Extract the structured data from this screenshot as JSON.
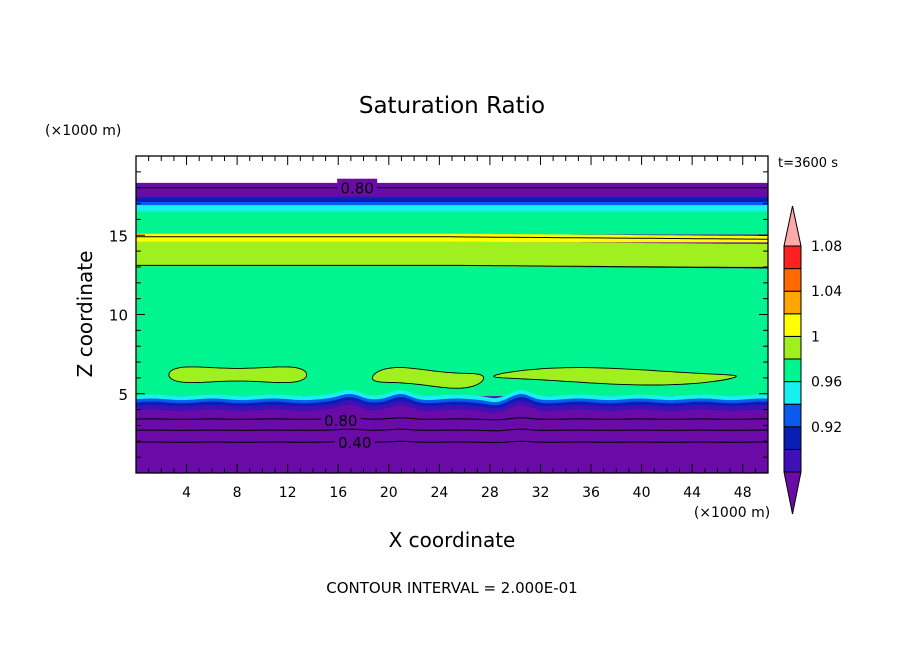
{
  "chart_data": {
    "type": "contour",
    "title": "Saturation Ratio",
    "xlabel": "X coordinate",
    "ylabel": "Z coordinate",
    "x_unit": "(×1000 m)",
    "y_unit": "(×1000 m)",
    "time_label": "t=3600 s",
    "footer": "CONTOUR INTERVAL = 2.000E-01",
    "xlim": [
      0,
      50
    ],
    "ylim": [
      0,
      20
    ],
    "x_ticks": [
      4,
      8,
      12,
      16,
      20,
      24,
      28,
      32,
      36,
      40,
      44,
      48
    ],
    "x_tick_labels": [
      "4",
      "8",
      "12",
      "16",
      "20",
      "24",
      "28",
      "32",
      "36",
      "40",
      "44",
      "48"
    ],
    "y_ticks": [
      5,
      10,
      15
    ],
    "y_tick_labels": [
      "5",
      "10",
      "15"
    ],
    "contour_labels": [
      {
        "text": "0.80",
        "x": 17.5,
        "z": 18.0
      },
      {
        "text": "0.80",
        "x": 16.2,
        "z": 3.35
      },
      {
        "text": "0.40",
        "x": 17.3,
        "z": 1.95
      }
    ],
    "bands": [
      {
        "z0": 0.0,
        "z1": 18.3,
        "color": "#6a0ba8",
        "level": "<0.90"
      },
      {
        "z0": 17.3,
        "z1": 17.45,
        "color": "#3f10b8",
        "level": "0.90-0.92"
      },
      {
        "z0": 17.05,
        "z1": 17.35,
        "color": "#0a1eb4",
        "level": "0.92-0.94"
      },
      {
        "z0": 16.85,
        "z1": 17.1,
        "color": "#0a5af0",
        "level": "0.94-0.96"
      },
      {
        "z0": 16.45,
        "z1": 16.9,
        "color": "#18f0f0",
        "level": "0.96-0.98"
      },
      {
        "z0": 15.05,
        "z1": 16.5,
        "color": "#00f590",
        "level": "0.98-1.00"
      },
      {
        "z0": 14.55,
        "z1": 15.1,
        "color": "#ffff00",
        "level": "1.02-1.04"
      },
      {
        "z0": 13.0,
        "z1": 14.6,
        "color": "#a0f020",
        "level": "1.00-1.02"
      },
      {
        "z0": 4.85,
        "z1": 13.05,
        "color": "#00f590",
        "level": "0.98-1.00"
      },
      {
        "z0": 4.6,
        "z1": 4.9,
        "color": "#18f0f0",
        "level": "0.96-0.98"
      },
      {
        "z0": 4.4,
        "z1": 4.65,
        "color": "#0a5af0",
        "level": "0.94-0.96"
      },
      {
        "z0": 4.2,
        "z1": 4.45,
        "color": "#0a1eb4",
        "level": "0.92-0.94"
      },
      {
        "z0": 3.95,
        "z1": 4.25,
        "color": "#3f10b8",
        "level": "0.90-0.92"
      }
    ],
    "blobs": [
      {
        "x0": 2.6,
        "x1": 13.5,
        "zc": 6.2,
        "h": 1.0,
        "color": "#a0f020"
      },
      {
        "x0": 18.7,
        "x1": 27.5,
        "zc": 6.0,
        "h": 0.9,
        "color": "#a0f020"
      },
      {
        "x0": 28.3,
        "x1": 47.5,
        "zc": 6.1,
        "h": 0.6,
        "color": "#a0f020"
      }
    ],
    "contour_lines_z": [
      18.0,
      13.1,
      14.9,
      3.4,
      2.7,
      1.95
    ],
    "colorbar": {
      "levels": [
        "<0.90",
        "0.90-0.92",
        "0.92-0.94",
        "0.94-0.96",
        "0.96-0.98",
        "0.98-1.00",
        "1.00-1.02",
        "1.02-1.04",
        "1.04-1.06",
        "1.06-1.08",
        "1.08-1.10",
        ">1.10"
      ],
      "colors": [
        "#6a0ba8",
        "#3f10b8",
        "#0a1eb4",
        "#0a5af0",
        "#18f0f0",
        "#00f590",
        "#a0f020",
        "#ffff00",
        "#ffa500",
        "#ff6a00",
        "#ff2020",
        "#ffaaaa"
      ],
      "labels": [
        "0.92",
        "0.96",
        "1",
        "1.04",
        "1.08"
      ],
      "label_boundary_index": [
        2,
        4,
        6,
        8,
        10
      ]
    }
  }
}
